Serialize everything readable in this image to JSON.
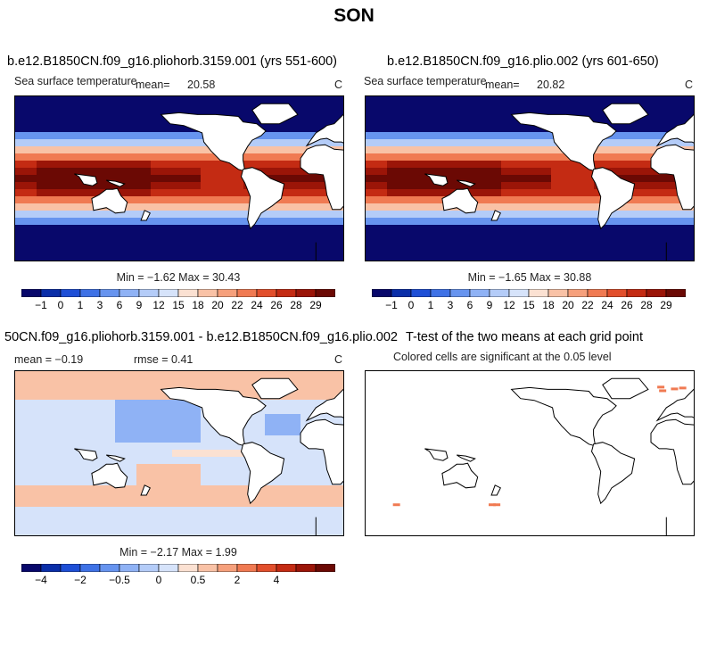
{
  "main_title": "SON",
  "panels": {
    "p1": {
      "title": "b.e12.B1850CN.f09_g16.pliohorb.3159.001 (yrs 551-600)",
      "variable": "Sea surface temperature",
      "mean_label": "mean=",
      "mean_value": "20.58",
      "units": "C",
      "minmax": "Min =  −1.62 Max =  30.43"
    },
    "p2": {
      "title": "b.e12.B1850CN.f09_g16.plio.002 (yrs 601-650)",
      "variable": "Sea surface temperature",
      "mean_label": "mean=",
      "mean_value": "20.82",
      "units": "C",
      "minmax": "Min =  −1.65 Max =  30.88"
    },
    "p3": {
      "title": "50CN.f09_g16.pliohorb.3159.001 - b.e12.B1850CN.f09_g16.plio.002",
      "mean_text": "mean =  −0.19",
      "rmse_text": "rmse =   0.41",
      "units": "C",
      "minmax": "Min =  −2.17 Max =   1.99"
    },
    "p4": {
      "title": "T-test of the two means at each grid point",
      "subtitle": "Colored cells are significant at the 0.05 level"
    }
  },
  "colorbars": {
    "sst": {
      "labels": [
        "−1",
        "0",
        "1",
        "3",
        "6",
        "9",
        "12",
        "15",
        "18",
        "20",
        "22",
        "24",
        "26",
        "28",
        "29"
      ],
      "colors": [
        "#08086b",
        "#0a2ea8",
        "#1e4fd6",
        "#3f72e6",
        "#6794ef",
        "#8fb2f5",
        "#b4ccf8",
        "#d6e3fa",
        "#fbe1d2",
        "#f9c2a6",
        "#f6a07c",
        "#f07a52",
        "#e24f2c",
        "#c42b13",
        "#9b1508",
        "#6b0904"
      ]
    },
    "diff": {
      "labels": [
        "−4",
        "−2",
        "−0.5",
        "0",
        "0.5",
        "2",
        "4"
      ],
      "colors": [
        "#08086b",
        "#0a2ea8",
        "#1e4fd6",
        "#3f72e6",
        "#6794ef",
        "#8fb2f5",
        "#b4ccf8",
        "#d6e3fa",
        "#fbe1d2",
        "#f9c2a6",
        "#f6a07c",
        "#f07a52",
        "#e24f2c",
        "#c42b13",
        "#9b1508",
        "#6b0904"
      ],
      "label_positions": [
        1,
        3,
        5,
        7,
        9,
        11,
        13
      ]
    }
  },
  "chart_data": [
    {
      "type": "heatmap",
      "title": "b.e12.B1850CN.f09_g16.pliohorb.3159.001 (yrs 551-600)",
      "variable": "Sea surface temperature",
      "units": "C",
      "mean": 20.58,
      "min": -1.62,
      "max": 30.43,
      "contour_levels": [
        -1,
        0,
        1,
        3,
        6,
        9,
        12,
        15,
        18,
        20,
        22,
        24,
        26,
        28,
        29
      ]
    },
    {
      "type": "heatmap",
      "title": "b.e12.B1850CN.f09_g16.plio.002 (yrs 601-650)",
      "variable": "Sea surface temperature",
      "units": "C",
      "mean": 20.82,
      "min": -1.65,
      "max": 30.88,
      "contour_levels": [
        -1,
        0,
        1,
        3,
        6,
        9,
        12,
        15,
        18,
        20,
        22,
        24,
        26,
        28,
        29
      ]
    },
    {
      "type": "heatmap",
      "title": "50CN.f09_g16.pliohorb.3159.001 - b.e12.B1850CN.f09_g16.plio.002",
      "units": "C",
      "mean": -0.19,
      "rmse": 0.41,
      "min": -2.17,
      "max": 1.99,
      "contour_levels": [
        -4,
        -2,
        -0.5,
        0,
        0.5,
        2,
        4
      ]
    },
    {
      "type": "heatmap",
      "title": "T-test of the two means at each grid point",
      "subtitle": "Colored cells are significant at the 0.05 level"
    }
  ]
}
